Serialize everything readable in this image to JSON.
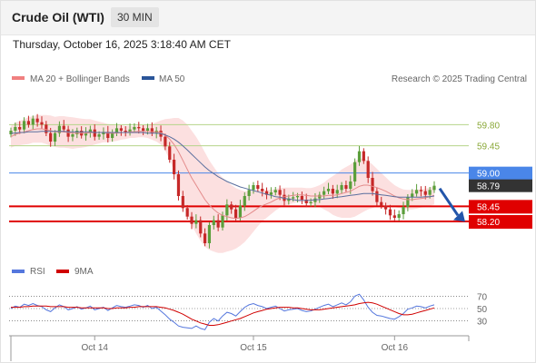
{
  "header": {
    "title": "Crude Oil (WTI)",
    "timeframe": "30 MIN"
  },
  "timestamp": "Thursday, October 16, 2025 3:18:40 AM CET",
  "legend": {
    "ma20": {
      "label": "MA 20 + Bollinger Bands",
      "color": "#f08080"
    },
    "ma50": {
      "label": "MA 50",
      "color": "#2a5599"
    }
  },
  "attribution": "Research © 2025 Trading Central",
  "colors": {
    "up": "#5a9e3a",
    "down": "#c62828",
    "band": "#fbd5d5",
    "ma20": "#e38a8a",
    "ma50": "#5a6f9e",
    "resistance": "#b6d48a",
    "pivot": "#4a86e8",
    "support": "#e00000",
    "current": "#333333",
    "rsi": "#5577dd",
    "rsi_ma": "#d00000",
    "arrow": "#2255aa"
  },
  "chart_data": [
    {
      "type": "candlestick",
      "x_ticks": [
        "Oct 14",
        "Oct 15",
        "Oct 16"
      ],
      "ylim": [
        57.6,
        60.3
      ],
      "levels": [
        {
          "value": 59.8,
          "label": "59.80",
          "kind": "resistance"
        },
        {
          "value": 59.45,
          "label": "59.45",
          "kind": "resistance"
        },
        {
          "value": 59.0,
          "label": "59.00",
          "kind": "pivot"
        },
        {
          "value": 58.45,
          "label": "58.45",
          "kind": "support"
        },
        {
          "value": 58.2,
          "label": "58.20",
          "kind": "support"
        }
      ],
      "current_price": {
        "value": 58.79,
        "label": "58.79"
      },
      "close": [
        59.7,
        59.76,
        59.72,
        59.86,
        59.8,
        59.9,
        59.84,
        59.8,
        59.66,
        59.52,
        59.66,
        59.78,
        59.72,
        59.6,
        59.64,
        59.7,
        59.62,
        59.66,
        59.72,
        59.6,
        59.64,
        59.68,
        59.58,
        59.66,
        59.74,
        59.7,
        59.68,
        59.72,
        59.76,
        59.74,
        59.7,
        59.74,
        59.66,
        59.7,
        59.6,
        59.44,
        59.22,
        58.98,
        58.62,
        58.42,
        58.28,
        58.16,
        58.22,
        58.0,
        57.84,
        58.14,
        58.22,
        58.1,
        58.3,
        58.48,
        58.4,
        58.26,
        58.46,
        58.62,
        58.72,
        58.8,
        58.74,
        58.7,
        58.64,
        58.68,
        58.72,
        58.64,
        58.54,
        58.58,
        58.6,
        58.62,
        58.56,
        58.5,
        58.52,
        58.58,
        58.64,
        58.7,
        58.74,
        58.66,
        58.72,
        58.8,
        58.74,
        58.86,
        59.18,
        59.36,
        59.2,
        58.92,
        58.7,
        58.52,
        58.46,
        58.4,
        58.3,
        58.26,
        58.32,
        58.44,
        58.6,
        58.66,
        58.72,
        58.7,
        58.64,
        58.72,
        58.79
      ],
      "ma20": [
        59.6,
        59.64,
        59.66,
        59.68,
        59.7,
        59.72,
        59.73,
        59.73,
        59.72,
        59.7,
        59.68,
        59.68,
        59.68,
        59.67,
        59.66,
        59.66,
        59.66,
        59.66,
        59.67,
        59.67,
        59.67,
        59.67,
        59.66,
        59.66,
        59.66,
        59.67,
        59.67,
        59.68,
        59.68,
        59.69,
        59.69,
        59.69,
        59.68,
        59.68,
        59.67,
        59.63,
        59.56,
        59.47,
        59.35,
        59.21,
        59.06,
        58.92,
        58.8,
        58.68,
        58.56,
        58.47,
        58.4,
        58.34,
        58.3,
        58.28,
        58.26,
        58.25,
        58.26,
        58.28,
        58.32,
        58.37,
        58.42,
        58.46,
        58.49,
        58.52,
        58.56,
        58.59,
        58.61,
        58.62,
        58.63,
        58.64,
        58.64,
        58.63,
        58.62,
        58.62,
        58.62,
        58.62,
        58.63,
        58.63,
        58.64,
        58.66,
        58.68,
        58.7,
        58.74,
        58.78,
        58.8,
        58.8,
        58.78,
        58.76,
        58.73,
        58.7,
        58.66,
        58.62,
        58.59,
        58.57,
        58.56,
        58.56,
        58.57,
        58.58,
        58.59,
        58.61,
        58.63
      ],
      "ma50": [
        59.66,
        59.66,
        59.67,
        59.67,
        59.68,
        59.68,
        59.68,
        59.69,
        59.69,
        59.69,
        59.69,
        59.69,
        59.69,
        59.68,
        59.68,
        59.68,
        59.68,
        59.68,
        59.68,
        59.67,
        59.67,
        59.67,
        59.67,
        59.67,
        59.67,
        59.67,
        59.67,
        59.67,
        59.67,
        59.67,
        59.67,
        59.66,
        59.66,
        59.66,
        59.65,
        59.63,
        59.6,
        59.56,
        59.51,
        59.45,
        59.38,
        59.31,
        59.24,
        59.17,
        59.1,
        59.04,
        58.99,
        58.94,
        58.9,
        58.86,
        58.83,
        58.8,
        58.77,
        58.75,
        58.73,
        58.71,
        58.69,
        58.67,
        58.65,
        58.63,
        58.61,
        58.6,
        58.58,
        58.57,
        58.56,
        58.55,
        58.55,
        58.55,
        58.55,
        58.56,
        58.56,
        58.57,
        58.58,
        58.59,
        58.6,
        58.61,
        58.62,
        58.63,
        58.64,
        58.65,
        58.66,
        58.66,
        58.66,
        58.65,
        58.64,
        58.63,
        58.62,
        58.61,
        58.6,
        58.6,
        58.6,
        58.6,
        58.6,
        58.6,
        58.61,
        58.61,
        58.62
      ],
      "bb_width": [
        0.18,
        0.19,
        0.2,
        0.21,
        0.22,
        0.22,
        0.23,
        0.23,
        0.24,
        0.25,
        0.25,
        0.26,
        0.26,
        0.26,
        0.26,
        0.25,
        0.24,
        0.23,
        0.22,
        0.2,
        0.18,
        0.16,
        0.15,
        0.14,
        0.13,
        0.12,
        0.11,
        0.1,
        0.1,
        0.1,
        0.1,
        0.11,
        0.13,
        0.16,
        0.2,
        0.26,
        0.34,
        0.44,
        0.56,
        0.66,
        0.74,
        0.78,
        0.8,
        0.8,
        0.78,
        0.74,
        0.7,
        0.66,
        0.62,
        0.58,
        0.54,
        0.5,
        0.46,
        0.42,
        0.38,
        0.34,
        0.3,
        0.26,
        0.23,
        0.2,
        0.18,
        0.16,
        0.15,
        0.14,
        0.13,
        0.12,
        0.12,
        0.12,
        0.13,
        0.15,
        0.18,
        0.22,
        0.27,
        0.32,
        0.36,
        0.4,
        0.42,
        0.44,
        0.46,
        0.46,
        0.44,
        0.4,
        0.36,
        0.31,
        0.27,
        0.23,
        0.2,
        0.18,
        0.17,
        0.16,
        0.16,
        0.16,
        0.16,
        0.15,
        0.15,
        0.15,
        0.15
      ]
    },
    {
      "type": "line",
      "legend": [
        {
          "name": "RSI"
        },
        {
          "name": "9MA"
        }
      ],
      "ylim": [
        15,
        85
      ],
      "y_ticks": [
        70,
        50,
        30
      ],
      "rsi": [
        50,
        54,
        52,
        57,
        55,
        58,
        55,
        53,
        48,
        45,
        51,
        56,
        53,
        48,
        50,
        53,
        49,
        51,
        54,
        48,
        50,
        52,
        47,
        51,
        55,
        53,
        52,
        54,
        56,
        55,
        52,
        55,
        50,
        52,
        46,
        40,
        33,
        28,
        22,
        20,
        19,
        18,
        22,
        18,
        16,
        28,
        34,
        30,
        38,
        44,
        42,
        38,
        45,
        52,
        56,
        58,
        55,
        53,
        50,
        52,
        54,
        50,
        46,
        48,
        49,
        50,
        47,
        45,
        46,
        49,
        52,
        55,
        57,
        53,
        56,
        59,
        56,
        61,
        70,
        73,
        64,
        52,
        44,
        39,
        38,
        36,
        34,
        33,
        37,
        42,
        49,
        51,
        54,
        53,
        51,
        54,
        56
      ],
      "ma9": [
        52,
        52,
        52,
        53,
        53,
        54,
        54,
        54,
        54,
        53,
        53,
        53,
        53,
        52,
        52,
        52,
        51,
        51,
        51,
        51,
        51,
        51,
        50,
        50,
        51,
        51,
        51,
        52,
        52,
        53,
        53,
        53,
        53,
        53,
        52,
        51,
        49,
        47,
        44,
        41,
        37,
        33,
        30,
        27,
        25,
        23,
        23,
        24,
        26,
        28,
        30,
        32,
        34,
        37,
        40,
        43,
        45,
        47,
        49,
        50,
        51,
        52,
        52,
        52,
        51,
        51,
        50,
        49,
        48,
        48,
        48,
        49,
        50,
        51,
        52,
        53,
        54,
        55,
        56,
        58,
        59,
        60,
        59,
        57,
        54,
        51,
        48,
        45,
        42,
        40,
        40,
        41,
        43,
        45,
        47,
        49,
        51
      ]
    }
  ]
}
